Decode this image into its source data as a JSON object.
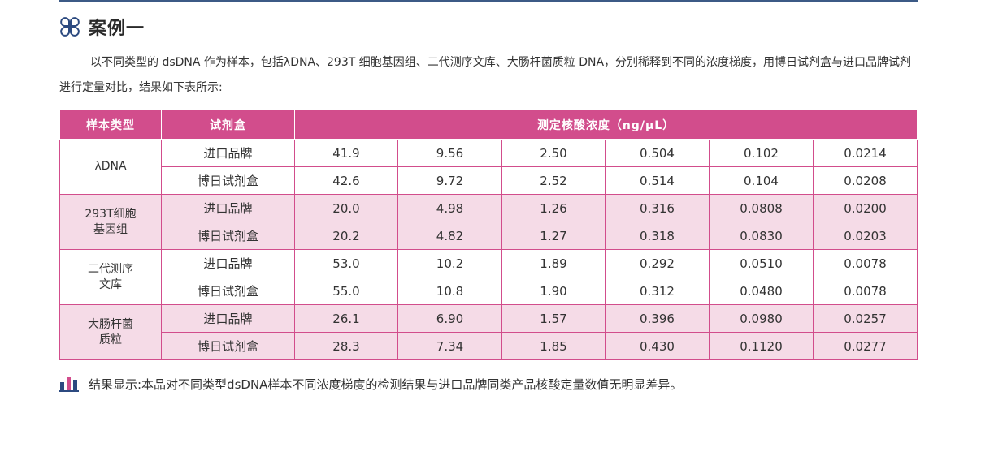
{
  "heading": {
    "title": "案例一"
  },
  "intro": "以不同类型的 dsDNA 作为样本，包括λDNA、293T 细胞基因组、二代测序文库、大肠杆菌质粒 DNA，分别稀释到不同的浓度梯度，用博日试剂盒与进口品牌试剂进行定量对比，结果如下表所示:",
  "table": {
    "headers": {
      "sample_type": "样本类型",
      "kit": "试剂盒",
      "concentration": "测定核酸浓度（ng/μL）"
    },
    "groups": [
      {
        "sample_lines": [
          "λDNA"
        ],
        "rows": [
          {
            "kit": "进口品牌",
            "values": [
              "41.9",
              "9.56",
              "2.50",
              "0.504",
              "0.102",
              "0.0214"
            ]
          },
          {
            "kit": "博日试剂盒",
            "values": [
              "42.6",
              "9.72",
              "2.52",
              "0.514",
              "0.104",
              "0.0208"
            ]
          }
        ]
      },
      {
        "sample_lines": [
          "293T细胞",
          "基因组"
        ],
        "rows": [
          {
            "kit": "进口品牌",
            "values": [
              "20.0",
              "4.98",
              "1.26",
              "0.316",
              "0.0808",
              "0.0200"
            ]
          },
          {
            "kit": "博日试剂盒",
            "values": [
              "20.2",
              "4.82",
              "1.27",
              "0.318",
              "0.0830",
              "0.0203"
            ]
          }
        ]
      },
      {
        "sample_lines": [
          "二代测序",
          "文库"
        ],
        "rows": [
          {
            "kit": "进口品牌",
            "values": [
              "53.0",
              "10.2",
              "1.89",
              "0.292",
              "0.0510",
              "0.0078"
            ]
          },
          {
            "kit": "博日试剂盒",
            "values": [
              "55.0",
              "10.8",
              "1.90",
              "0.312",
              "0.0480",
              "0.0078"
            ]
          }
        ]
      },
      {
        "sample_lines": [
          "大肠杆菌",
          "质粒"
        ],
        "rows": [
          {
            "kit": "进口品牌",
            "values": [
              "26.1",
              "6.90",
              "1.57",
              "0.396",
              "0.0980",
              "0.0257"
            ]
          },
          {
            "kit": "博日试剂盒",
            "values": [
              "28.3",
              "7.34",
              "1.85",
              "0.430",
              "0.1120",
              "0.0277"
            ]
          }
        ]
      }
    ]
  },
  "conclusion": "结果显示:本品对不同类型dsDNA样本不同浓度梯度的检测结果与进口品牌同类产品核酸定量数值无明显差异。",
  "colors": {
    "accent": "#d24d8c",
    "row_tint": "#f5dbe7",
    "rule": "#3c5a86",
    "icon_pink": "#d24d8c",
    "icon_navy": "#2c4a80"
  },
  "icons": {
    "heading": "clover-icon",
    "conclusion": "bar-chart-icon"
  }
}
